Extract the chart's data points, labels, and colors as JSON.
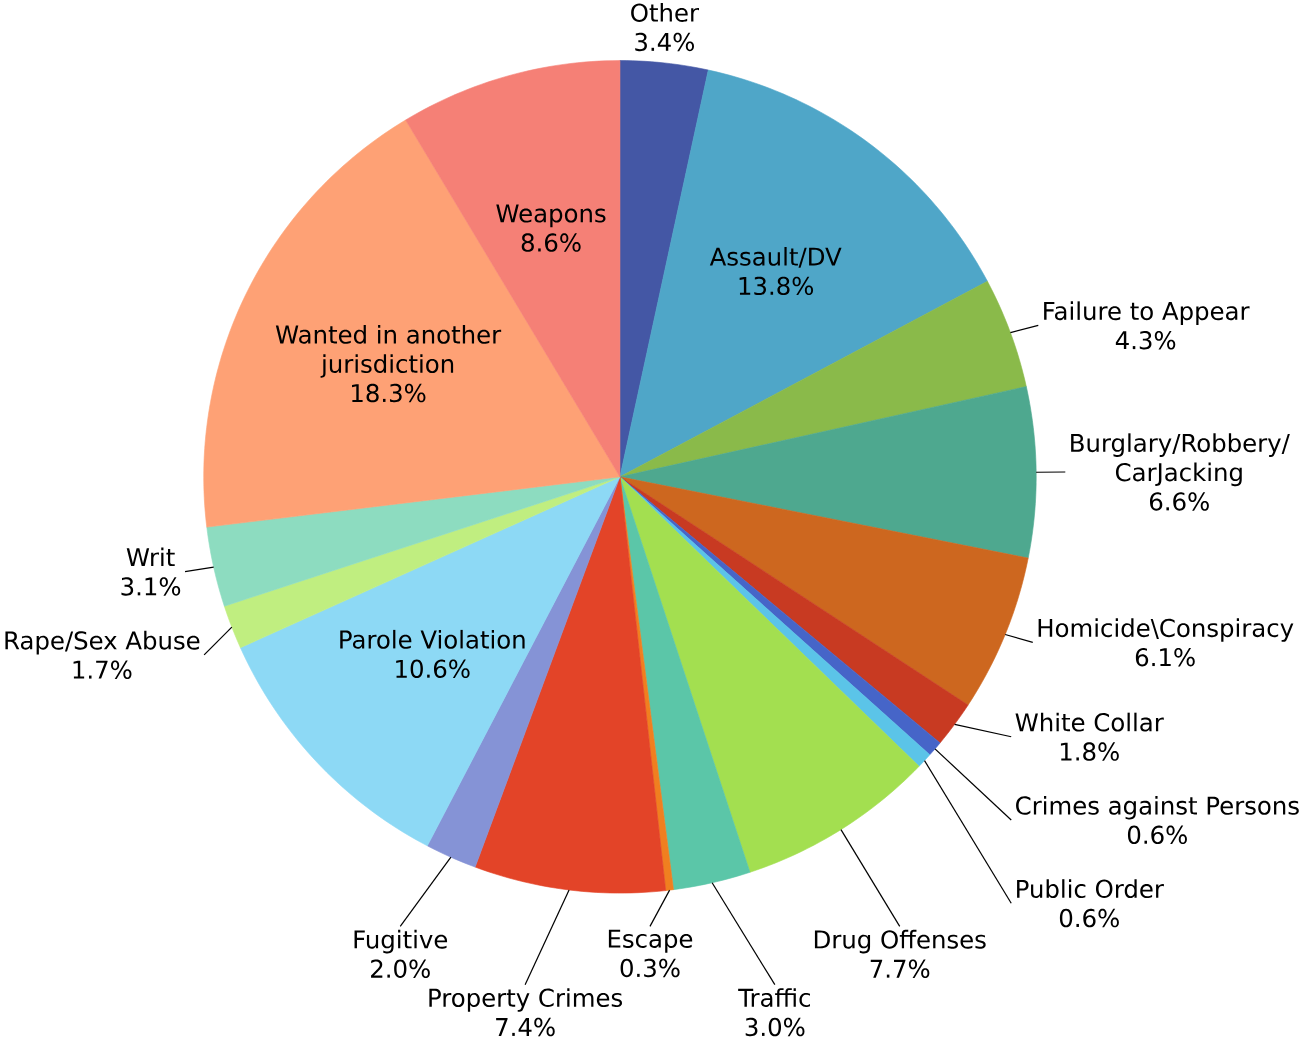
{
  "chart_data": {
    "type": "pie",
    "categories": [
      "Other",
      "Assault/DV",
      "Failure to Appear",
      "Burglary/Robbery/CarJacking",
      "Homicide\\Conspiracy",
      "White Collar",
      "Crimes against Persons",
      "Public Order",
      "Drug Offenses",
      "Traffic",
      "Escape",
      "Property Crimes",
      "Fugitive",
      "Parole Violation",
      "Rape/Sex Abuse",
      "Writ",
      "Wanted in another jurisdiction",
      "Weapons"
    ],
    "values": [
      3.4,
      13.8,
      4.3,
      6.6,
      6.1,
      1.8,
      0.6,
      0.6,
      7.7,
      3.0,
      0.3,
      7.4,
      2.0,
      10.6,
      1.7,
      3.1,
      18.3,
      8.6
    ],
    "value_labels": [
      "3.4%",
      "13.8%",
      "4.3%",
      "6.6%",
      "6.1%",
      "1.8%",
      "0.6%",
      "0.6%",
      "7.7%",
      "3.0%",
      "0.3%",
      "7.4%",
      "2.0%",
      "10.6%",
      "1.7%",
      "3.1%",
      "18.3%",
      "8.6%"
    ],
    "colors": [
      "#4457a5",
      "#4fa6c8",
      "#8aba4a",
      "#4ea88f",
      "#cd671f",
      "#c83a22",
      "#4665c8",
      "#5bc4e8",
      "#a3df50",
      "#5bc6a8",
      "#f07f20",
      "#e34428",
      "#8593d6",
      "#8dd9f5",
      "#c0ee80",
      "#8ddcc0",
      "#fea175",
      "#f58076"
    ]
  }
}
